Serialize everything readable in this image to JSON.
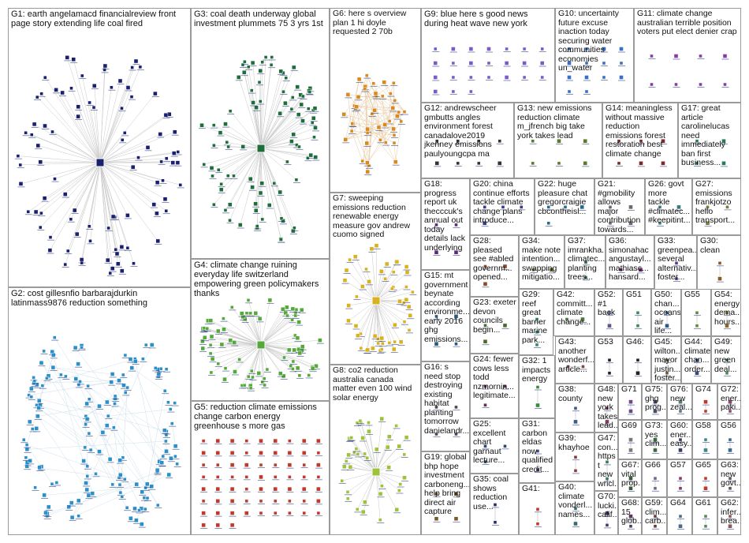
{
  "groups": [
    {
      "id": "G1",
      "label": "G1: earth angelamacd financialreview front page story extending life coal fired",
      "color": "#1a1f6e",
      "nodes": 90,
      "style": "hub"
    },
    {
      "id": "G2",
      "label": "G2: cost gillesnfio barbarajdurkin latinmass9876 reduction something",
      "color": "#2b8fc9",
      "nodes": 150,
      "style": "ring"
    },
    {
      "id": "G3",
      "label": "G3: coal death underway global investment plummets 75 3 yrs 1st",
      "color": "#1f6e3a",
      "nodes": 90,
      "style": "hub"
    },
    {
      "id": "G4",
      "label": "G4: climate change ruining everyday life switzerland empowering green policymakers thanks",
      "color": "#55a83a",
      "nodes": 80,
      "style": "hub"
    },
    {
      "id": "G5",
      "label": "G5: reduction climate emissions change carbon energy greenhouse s more gas",
      "color": "#c0392b",
      "nodes": 66,
      "style": "grid"
    },
    {
      "id": "G6",
      "label": "G6: here s overview plan 1 hi doyle requested 2 70b",
      "color": "#d98a1e",
      "nodes": 45,
      "style": "cluster"
    },
    {
      "id": "G7",
      "label": "G7: sweeping emissions reduction renewable energy measure gov andrew cuomo signed",
      "color": "#d9b21e",
      "nodes": 50,
      "style": "hub"
    },
    {
      "id": "G8",
      "label": "G8: co2 reduction australia canada matter even 100 wind solar energy",
      "color": "#9fc23a",
      "nodes": 40,
      "style": "hub"
    },
    {
      "id": "G9",
      "label": "G9: blue here s good news during heat wave new york",
      "color": "#7a5cc7",
      "nodes": 24,
      "style": "grid"
    },
    {
      "id": "G10",
      "label": "G10: uncertainty future excuse inaction today securing water communities economies un_water",
      "color": "#3a6fc2",
      "nodes": 14,
      "style": "grid"
    },
    {
      "id": "G11",
      "label": "G11: climate change australian terrible position voters put elect denier crap",
      "color": "#8a3aa8",
      "nodes": 8,
      "style": "grid"
    },
    {
      "id": "G12",
      "label": "G12: andrewscheer gmbutts angles environment forest canadalove2019 jkenney emissions paulyoungcpa ma",
      "color": "#333333",
      "nodes": 8,
      "style": "grid"
    },
    {
      "id": "G13",
      "label": "G13: new emissions reduction climate m_jfrench big take york takes lead",
      "color": "#5a7a2a",
      "nodes": 6,
      "style": "grid"
    },
    {
      "id": "G14",
      "label": "G14: meaningless without massive reduction emissions forest restoration best climate change",
      "color": "#7a2a2a",
      "nodes": 6,
      "style": "grid"
    },
    {
      "id": "G15",
      "label": "G15: mt government beynate according environme... early 2016 ghg emissions...",
      "color": "#2a5a7a",
      "nodes": 4,
      "style": "grid"
    },
    {
      "id": "G16",
      "label": "G16: s need stop destroying existing habitat planting tomorrow danielandr...",
      "color": "#4a4a4a",
      "nodes": 4,
      "style": "grid"
    },
    {
      "id": "G17",
      "label": "G17: great article carolinelucas need immediately ban first business...",
      "color": "#2a7a5a",
      "nodes": 4,
      "style": "grid"
    },
    {
      "id": "G18",
      "label": "G18: progress report uk thecccuk's annual out today details lack underlying",
      "color": "#5a2a7a",
      "nodes": 4,
      "style": "grid"
    },
    {
      "id": "G19",
      "label": "G19: global bhp hope investment carboneng... help bring direct air capture",
      "color": "#7a5a2a",
      "nodes": 4,
      "style": "grid"
    },
    {
      "id": "G20",
      "label": "G20: china continue efforts tackle climate change plans introduce...",
      "color": "#3a3a8a",
      "nodes": 4,
      "style": "grid"
    },
    {
      "id": "G21",
      "label": "G21: #gmobility allows major contribution towards...",
      "color": "#6a6a6a",
      "nodes": 4,
      "style": "grid"
    },
    {
      "id": "G22",
      "label": "G22: huge pleasure chat gregorcraigie cbcontheisl...",
      "color": "#2a6a8a",
      "nodes": 4,
      "style": "grid"
    },
    {
      "id": "G23",
      "label": "G23: exeter devon councils begin...",
      "color": "#4a6a2a",
      "nodes": 3,
      "style": "grid"
    },
    {
      "id": "G24",
      "label": "G24: fewer cows less todd nzmornin... legitimate...",
      "color": "#6a2a4a",
      "nodes": 3,
      "style": "grid"
    },
    {
      "id": "G25",
      "label": "G25: excellent chart garnaut lecture...",
      "color": "#2a4a6a",
      "nodes": 3,
      "style": "grid"
    },
    {
      "id": "G26",
      "label": "G26: govt more tackle #climatec... #keepitint...",
      "color": "#3a7a7a",
      "nodes": 3,
      "style": "grid"
    },
    {
      "id": "G27",
      "label": "G27: emissions frankjotzo hello transport...",
      "color": "#7a7a3a",
      "nodes": 3,
      "style": "grid"
    },
    {
      "id": "G28",
      "label": "G28: pleased see #abled governm... opened...",
      "color": "#8a4a2a",
      "nodes": 3,
      "style": "grid"
    },
    {
      "id": "G29",
      "label": "G29: reef great barrier marine park...",
      "color": "#2a8a6a",
      "nodes": 3,
      "style": "grid"
    },
    {
      "id": "G30",
      "label": "G30: clean",
      "color": "#8a5a2a",
      "nodes": 2,
      "style": "grid"
    },
    {
      "id": "G31",
      "label": "G31: carbon eldas now qualified credit...",
      "color": "#4a4a8a",
      "nodes": 2,
      "style": "grid"
    },
    {
      "id": "G32",
      "label": "G32: 1 impacts energy",
      "color": "#3a8a3a",
      "nodes": 2,
      "style": "grid"
    },
    {
      "id": "G33",
      "label": "G33: greenpea... several alternativ... foster...",
      "color": "#5a3a8a",
      "nodes": 2,
      "style": "grid"
    },
    {
      "id": "G34",
      "label": "G34: make note intention... swapping mitigatio...",
      "color": "#6a6a2a",
      "nodes": 2,
      "style": "grid"
    },
    {
      "id": "G35",
      "label": "G35: coal shows reduction use...",
      "color": "#2a2a6a",
      "nodes": 2,
      "style": "grid"
    },
    {
      "id": "G36",
      "label": "G36: simonahac angustayl... mathiasc... hansard...",
      "color": "#6a2a6a",
      "nodes": 2,
      "style": "grid"
    },
    {
      "id": "G37",
      "label": "G37: imrankha... climatec... planting trees...",
      "color": "#2a6a4a",
      "nodes": 2,
      "style": "grid"
    },
    {
      "id": "G38",
      "label": "G38: county",
      "color": "#3a5a8a",
      "nodes": 2,
      "style": "grid"
    },
    {
      "id": "G39",
      "label": "G39: khayhoe",
      "color": "#8a3a3a",
      "nodes": 2,
      "style": "grid"
    },
    {
      "id": "G40",
      "label": "G40: climate vonderl... names...",
      "color": "#3a6a6a",
      "nodes": 2,
      "style": "grid"
    },
    {
      "id": "G41",
      "label": "G41:",
      "color": "#c0392b",
      "nodes": 2,
      "style": "grid"
    },
    {
      "id": "G42",
      "label": "G42: committ... climate change...",
      "color": "#4a7a3a",
      "nodes": 2,
      "style": "grid"
    },
    {
      "id": "G43",
      "label": "G43: another wonderf... article...",
      "color": "#7a4a3a",
      "nodes": 2,
      "style": "grid"
    },
    {
      "id": "G44",
      "label": "G44: climate chan... order...",
      "color": "#3a4a7a",
      "nodes": 2,
      "style": "grid"
    },
    {
      "id": "G45",
      "label": "G45: wilton... mayor justin... foster...",
      "color": "#6a5a3a",
      "nodes": 2,
      "style": "grid"
    },
    {
      "id": "G46",
      "label": "G46:",
      "color": "#222222",
      "nodes": 2,
      "style": "grid"
    },
    {
      "id": "G47",
      "label": "G47: con... https t new wricl...",
      "color": "#3a7a5a",
      "nodes": 2,
      "style": "grid"
    },
    {
      "id": "G48",
      "label": "G48: new york takes lead...",
      "color": "#7a3a5a",
      "nodes": 2,
      "style": "grid"
    },
    {
      "id": "G49",
      "label": "G49: new green deal...",
      "color": "#4a8a4a",
      "nodes": 2,
      "style": "grid"
    },
    {
      "id": "G50",
      "label": "G50: chan... oceans air life...",
      "color": "#2a5a8a",
      "nodes": 2,
      "style": "grid"
    },
    {
      "id": "G51",
      "label": "G51",
      "color": "#3a8a5a",
      "nodes": 2,
      "style": "grid"
    },
    {
      "id": "G52",
      "label": "G52: #1 back",
      "color": "#5a5a8a",
      "nodes": 2,
      "style": "grid"
    },
    {
      "id": "G53",
      "label": "G53",
      "color": "#222222",
      "nodes": 2,
      "style": "grid"
    },
    {
      "id": "G54",
      "label": "G54: energy dema... hours...",
      "color": "#8a6a2a",
      "nodes": 2,
      "style": "grid"
    },
    {
      "id": "G55",
      "label": "G55",
      "color": "#6a8a3a",
      "nodes": 2,
      "style": "grid"
    },
    {
      "id": "G56",
      "label": "G56",
      "color": "#3a6a8a",
      "nodes": 2,
      "style": "grid"
    },
    {
      "id": "G57",
      "label": "G57",
      "color": "#8a3a6a",
      "nodes": 2,
      "style": "grid"
    },
    {
      "id": "G58",
      "label": "G58",
      "color": "#3a8a8a",
      "nodes": 2,
      "style": "grid"
    },
    {
      "id": "G59",
      "label": "G59: clim... carb...",
      "color": "#6a3a3a",
      "nodes": 2,
      "style": "grid"
    },
    {
      "id": "G60",
      "label": "G60: ener... easy...",
      "color": "#3a3a6a",
      "nodes": 2,
      "style": "grid"
    },
    {
      "id": "G61",
      "label": "G61",
      "color": "#5a8a5a",
      "nodes": 2,
      "style": "grid"
    },
    {
      "id": "G62",
      "label": "G62: infer... brea...",
      "color": "#8a5a5a",
      "nodes": 2,
      "style": "grid"
    },
    {
      "id": "G63",
      "label": "G63: new govt...",
      "color": "#5a5a5a",
      "nodes": 2,
      "style": "grid"
    },
    {
      "id": "G64",
      "label": "G64",
      "color": "#4a6a8a",
      "nodes": 2,
      "style": "grid"
    },
    {
      "id": "G65",
      "label": "G65",
      "color": "#c0392b",
      "nodes": 2,
      "style": "grid"
    },
    {
      "id": "G66",
      "label": "G66",
      "color": "#6a6a8a",
      "nodes": 2,
      "style": "grid"
    },
    {
      "id": "G67",
      "label": "G67: vital prop...",
      "color": "#3a5a3a",
      "nodes": 2,
      "style": "grid"
    },
    {
      "id": "G68",
      "label": "G68: 15 glob...",
      "color": "#5a3a5a",
      "nodes": 2,
      "style": "grid"
    },
    {
      "id": "G69",
      "label": "G69",
      "color": "#7a7a7a",
      "nodes": 2,
      "style": "grid"
    },
    {
      "id": "G70",
      "label": "G70: lucki... calif...",
      "color": "#4a3a6a",
      "nodes": 2,
      "style": "grid"
    },
    {
      "id": "G71",
      "label": "G71",
      "color": "#6a4a8a",
      "nodes": 2,
      "style": "grid"
    },
    {
      "id": "G72",
      "label": "G72: ener... paki...",
      "color": "#8a4a6a",
      "nodes": 2,
      "style": "grid"
    },
    {
      "id": "G73",
      "label": "G73: yes clim...",
      "color": "#3a6a3a",
      "nodes": 2,
      "style": "grid"
    },
    {
      "id": "G74",
      "label": "G74",
      "color": "#c0392b",
      "nodes": 2,
      "style": "grid"
    },
    {
      "id": "G75",
      "label": "G75: ghg prog...",
      "color": "#4a4a6a",
      "nodes": 2,
      "style": "grid"
    },
    {
      "id": "G76",
      "label": "G76: new zeal...",
      "color": "#5a7a7a",
      "nodes": 2,
      "style": "grid"
    }
  ]
}
